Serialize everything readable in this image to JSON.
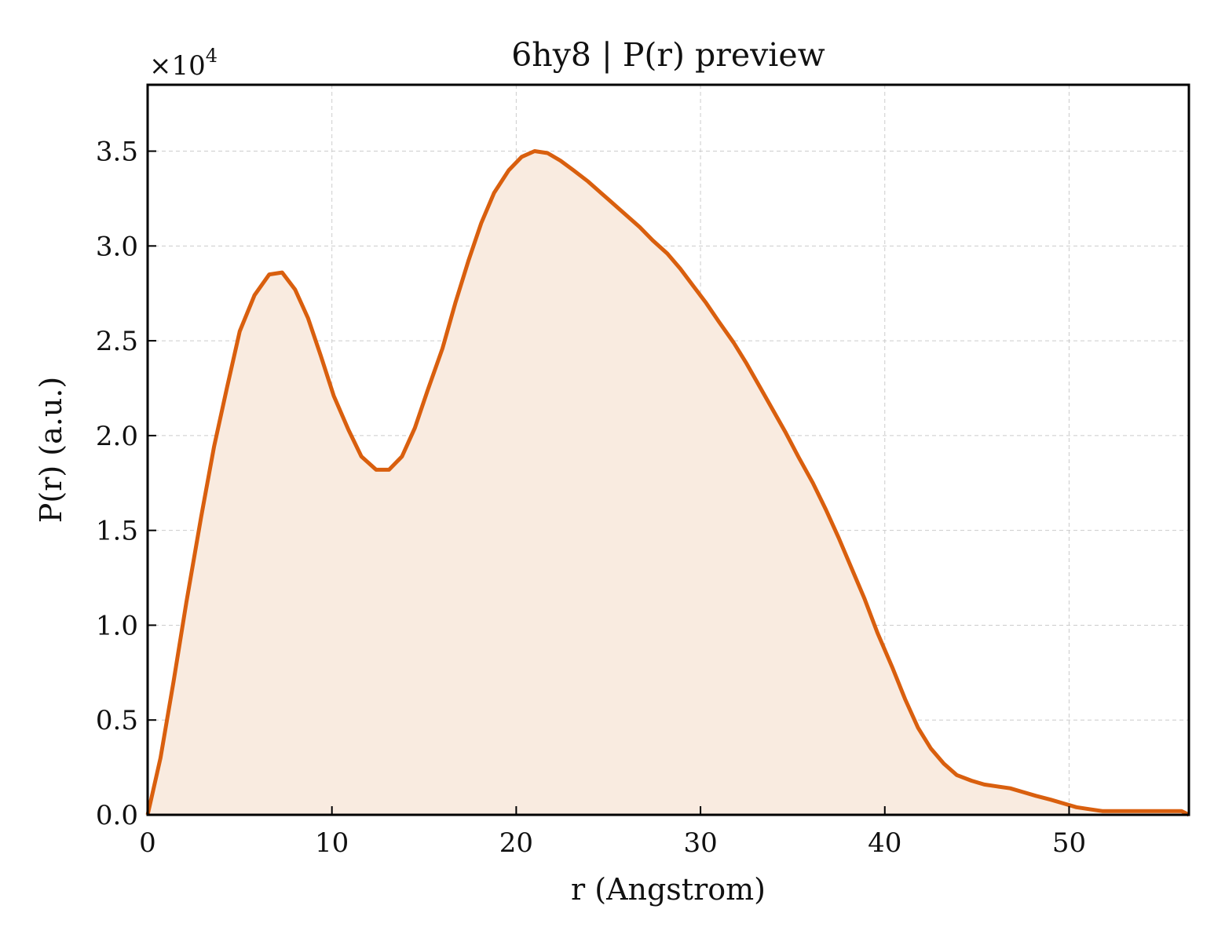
{
  "chart_data": {
    "type": "area",
    "title": "6hy8 | P(r) preview",
    "xlabel": "r (Angstrom)",
    "ylabel": "P(r) (a.u.)",
    "y_multiplier_label": "×10",
    "y_multiplier_exponent": "4",
    "xlim": [
      0,
      56.5
    ],
    "ylim": [
      0,
      3.85
    ],
    "x_ticks": [
      0,
      10,
      20,
      30,
      40,
      50
    ],
    "x_tick_labels": [
      "0",
      "10",
      "20",
      "30",
      "40",
      "50"
    ],
    "y_ticks": [
      0.0,
      0.5,
      1.0,
      1.5,
      2.0,
      2.5,
      3.0,
      3.5
    ],
    "y_tick_labels": [
      "0.0",
      "0.5",
      "1.0",
      "1.5",
      "2.0",
      "2.5",
      "3.0",
      "3.5"
    ],
    "grid": true,
    "line_color": "#d95f0e",
    "fill_color": "#f9ebe0",
    "series": [
      {
        "x": [
          0,
          0.7,
          1.4,
          2.1,
          2.9,
          3.6,
          4.3,
          5.0,
          5.8,
          6.6,
          7.3,
          8.0,
          8.7,
          9.4,
          10.1,
          10.9,
          11.6,
          12.4,
          13.1,
          13.8,
          14.5,
          15.2,
          16.0,
          16.7,
          17.4,
          18.1,
          18.8,
          19.6,
          20.3,
          21.0,
          21.7,
          22.4,
          23.1,
          23.9,
          24.6,
          25.3,
          26.0,
          26.7,
          27.4,
          28.2,
          28.9,
          29.6,
          30.3,
          31.0,
          31.8,
          32.5,
          33.2,
          33.9,
          34.6,
          35.3,
          36.1,
          36.8,
          37.5,
          38.2,
          38.9,
          39.6,
          40.4,
          41.1,
          41.8,
          42.5,
          43.2,
          43.9,
          44.7,
          45.4,
          46.1,
          46.8,
          47.5,
          48.2,
          49.0,
          49.7,
          50.4,
          51.1,
          51.8,
          52.5,
          53.3,
          54.0,
          54.7,
          55.4,
          56.1,
          56.5
        ],
        "y": [
          0.0,
          0.3,
          0.7,
          1.12,
          1.57,
          1.94,
          2.25,
          2.55,
          2.74,
          2.85,
          2.86,
          2.77,
          2.62,
          2.42,
          2.21,
          2.03,
          1.89,
          1.82,
          1.82,
          1.89,
          2.04,
          2.24,
          2.46,
          2.7,
          2.92,
          3.12,
          3.28,
          3.4,
          3.47,
          3.5,
          3.49,
          3.45,
          3.4,
          3.34,
          3.28,
          3.22,
          3.16,
          3.1,
          3.03,
          2.96,
          2.88,
          2.79,
          2.7,
          2.6,
          2.49,
          2.38,
          2.26,
          2.14,
          2.02,
          1.89,
          1.75,
          1.61,
          1.46,
          1.3,
          1.14,
          0.96,
          0.78,
          0.61,
          0.46,
          0.35,
          0.27,
          0.21,
          0.18,
          0.16,
          0.15,
          0.14,
          0.12,
          0.1,
          0.08,
          0.06,
          0.04,
          0.03,
          0.02,
          0.02,
          0.02,
          0.02,
          0.02,
          0.02,
          0.02,
          0.0
        ]
      }
    ]
  }
}
